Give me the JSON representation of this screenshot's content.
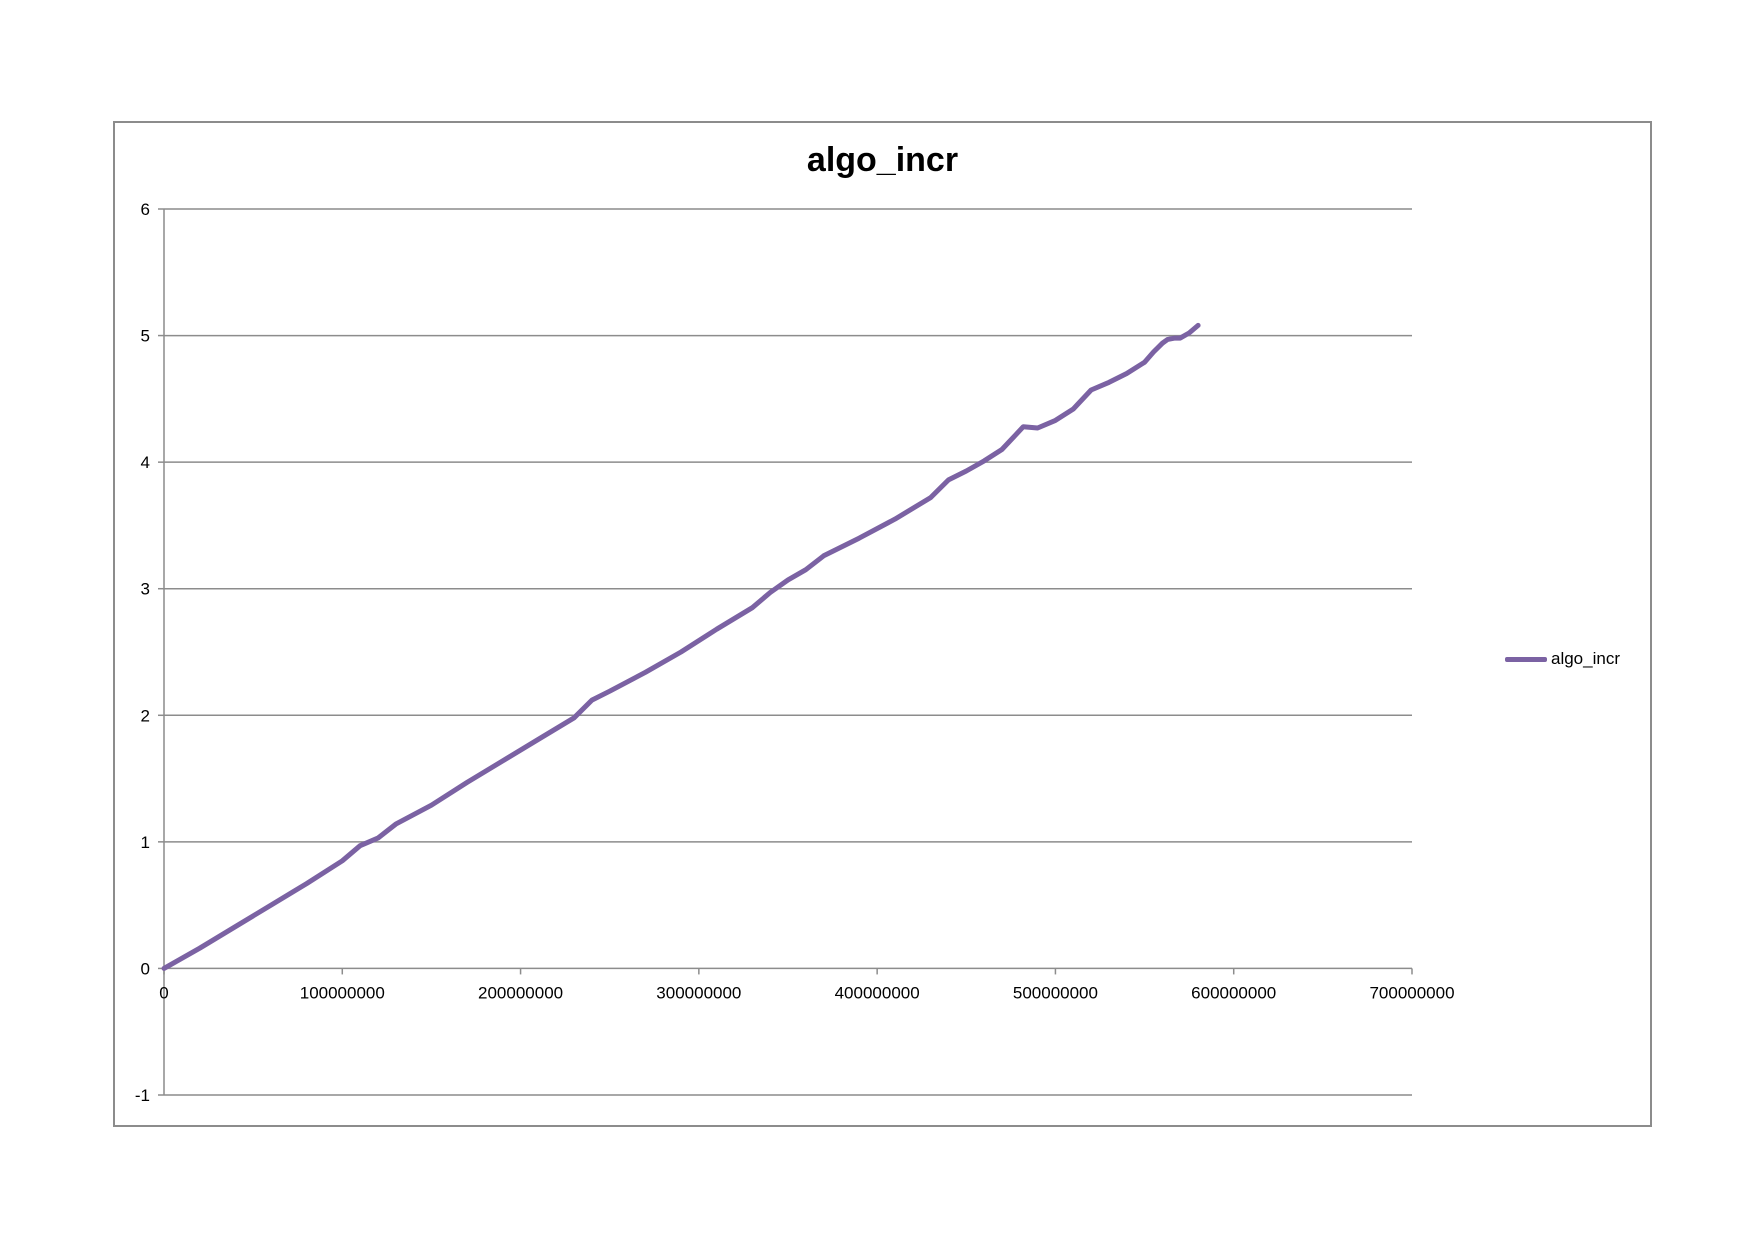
{
  "chart_data": {
    "type": "line",
    "title": "algo_incr",
    "xlabel": "",
    "ylabel": "",
    "xlim": [
      0,
      700000000
    ],
    "ylim": [
      -1,
      6
    ],
    "x_ticks": [
      0,
      100000000,
      200000000,
      300000000,
      400000000,
      500000000,
      600000000,
      700000000
    ],
    "x_tick_labels": [
      "0",
      "100000000",
      "200000000",
      "300000000",
      "400000000",
      "500000000",
      "600000000",
      "700000000"
    ],
    "y_ticks": [
      -1,
      0,
      1,
      2,
      3,
      4,
      5,
      6
    ],
    "y_tick_labels": [
      "-1",
      "0",
      "1",
      "2",
      "3",
      "4",
      "5",
      "6"
    ],
    "grid": {
      "horizontal": true,
      "vertical": false
    },
    "legend_position": "right",
    "series": [
      {
        "name": "algo_incr",
        "color": "#7b62a3",
        "x": [
          0,
          20000000,
          40000000,
          60000000,
          80000000,
          100000000,
          110000000,
          120000000,
          130000000,
          150000000,
          170000000,
          190000000,
          210000000,
          230000000,
          240000000,
          250000000,
          270000000,
          290000000,
          310000000,
          330000000,
          340000000,
          350000000,
          360000000,
          370000000,
          390000000,
          410000000,
          430000000,
          440000000,
          450000000,
          460000000,
          470000000,
          478000000,
          482000000,
          490000000,
          500000000,
          510000000,
          520000000,
          530000000,
          540000000,
          550000000,
          555000000,
          560000000,
          563000000,
          567000000,
          570000000,
          575000000,
          580000000
        ],
        "y": [
          0,
          0.16,
          0.33,
          0.5,
          0.67,
          0.85,
          0.97,
          1.03,
          1.14,
          1.29,
          1.47,
          1.64,
          1.81,
          1.98,
          2.12,
          2.19,
          2.34,
          2.5,
          2.68,
          2.85,
          2.97,
          3.07,
          3.15,
          3.26,
          3.4,
          3.55,
          3.72,
          3.86,
          3.93,
          4.01,
          4.1,
          4.22,
          4.28,
          4.27,
          4.33,
          4.42,
          4.57,
          4.63,
          4.7,
          4.79,
          4.87,
          4.94,
          4.97,
          4.98,
          4.98,
          5.02,
          5.08
        ]
      }
    ]
  }
}
